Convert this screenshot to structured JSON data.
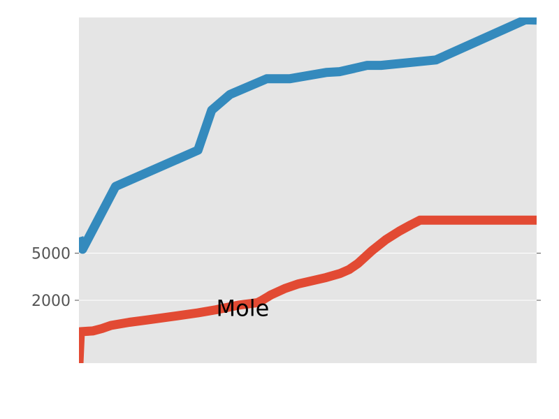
{
  "chart_data": {
    "type": "line",
    "title": "",
    "xlabel": "",
    "ylabel": "",
    "xlim": [
      0,
      100
    ],
    "ylim": [
      -2000,
      20000
    ],
    "grid": true,
    "background_color": "#e5e5e5",
    "yticks": [
      {
        "value": 2000,
        "label": "2000"
      },
      {
        "value": 5000,
        "label": "5000"
      }
    ],
    "series": [
      {
        "color": "#348abd",
        "points": [
          [
            0,
            6000
          ],
          [
            0.8,
            5250
          ],
          [
            8,
            9250
          ],
          [
            26,
            11550
          ],
          [
            29,
            14100
          ],
          [
            33,
            15100
          ],
          [
            41,
            16100
          ],
          [
            46,
            16100
          ],
          [
            54,
            16500
          ],
          [
            57,
            16550
          ],
          [
            63,
            16950
          ],
          [
            66,
            16950
          ],
          [
            78,
            17300
          ],
          [
            97.5,
            19850
          ],
          [
            100,
            19830
          ]
        ]
      },
      {
        "color": "#e24a33",
        "points": [
          [
            0,
            -2000
          ],
          [
            0.3,
            0
          ],
          [
            3,
            50
          ],
          [
            5,
            200
          ],
          [
            7,
            400
          ],
          [
            11,
            600
          ],
          [
            15,
            750
          ],
          [
            20,
            950
          ],
          [
            26,
            1200
          ],
          [
            30,
            1400
          ],
          [
            35,
            1700
          ],
          [
            39,
            1850
          ],
          [
            40,
            2000
          ],
          [
            42,
            2350
          ],
          [
            45,
            2750
          ],
          [
            48,
            3050
          ],
          [
            51,
            3250
          ],
          [
            54,
            3450
          ],
          [
            57,
            3700
          ],
          [
            59,
            3950
          ],
          [
            61,
            4350
          ],
          [
            64,
            5150
          ],
          [
            67,
            5850
          ],
          [
            70,
            6400
          ],
          [
            72.5,
            6800
          ],
          [
            74.5,
            7100
          ],
          [
            75,
            7100
          ],
          [
            100,
            7100
          ]
        ]
      }
    ],
    "annotations": [
      {
        "text": "Mole",
        "x": 30,
        "y": 1000
      }
    ]
  }
}
